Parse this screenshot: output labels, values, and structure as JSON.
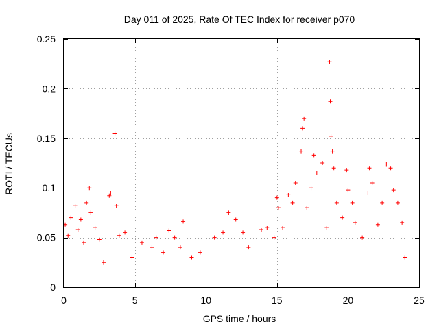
{
  "chart_data": {
    "type": "scatter",
    "title": "Day 011 of 2025, Rate Of TEC Index for receiver p070",
    "xlabel": "GPS time / hours",
    "ylabel": "ROTI / TECUs",
    "xlim": [
      0,
      25
    ],
    "ylim": [
      0,
      0.25
    ],
    "xticks": [
      "0",
      "5",
      "10",
      "15",
      "20",
      "25"
    ],
    "yticks": [
      "0",
      "0.05",
      "0.1",
      "0.15",
      "0.2",
      "0.25"
    ],
    "grid": true,
    "marker": "plus",
    "marker_color": "#ff0000",
    "series": [
      {
        "points": [
          [
            0.1,
            0.063
          ],
          [
            0.3,
            0.052
          ],
          [
            0.5,
            0.07
          ],
          [
            0.8,
            0.082
          ],
          [
            1.0,
            0.058
          ],
          [
            1.2,
            0.068
          ],
          [
            1.4,
            0.045
          ],
          [
            1.6,
            0.085
          ],
          [
            1.8,
            0.1
          ],
          [
            1.9,
            0.075
          ],
          [
            2.2,
            0.06
          ],
          [
            2.5,
            0.048
          ],
          [
            2.8,
            0.025
          ],
          [
            3.2,
            0.092
          ],
          [
            3.3,
            0.095
          ],
          [
            3.6,
            0.155
          ],
          [
            3.7,
            0.082
          ],
          [
            3.9,
            0.052
          ],
          [
            4.3,
            0.055
          ],
          [
            4.8,
            0.03
          ],
          [
            5.5,
            0.045
          ],
          [
            6.2,
            0.04
          ],
          [
            6.5,
            0.05
          ],
          [
            7.0,
            0.035
          ],
          [
            7.4,
            0.057
          ],
          [
            7.8,
            0.05
          ],
          [
            8.2,
            0.04
          ],
          [
            8.4,
            0.066
          ],
          [
            9.0,
            0.03
          ],
          [
            9.6,
            0.035
          ],
          [
            10.6,
            0.05
          ],
          [
            11.2,
            0.055
          ],
          [
            11.6,
            0.075
          ],
          [
            12.1,
            0.068
          ],
          [
            12.6,
            0.055
          ],
          [
            13.0,
            0.04
          ],
          [
            13.9,
            0.058
          ],
          [
            14.3,
            0.06
          ],
          [
            14.8,
            0.05
          ],
          [
            15.0,
            0.09
          ],
          [
            15.1,
            0.08
          ],
          [
            15.4,
            0.06
          ],
          [
            15.8,
            0.093
          ],
          [
            16.1,
            0.085
          ],
          [
            16.3,
            0.105
          ],
          [
            16.7,
            0.137
          ],
          [
            16.8,
            0.16
          ],
          [
            16.9,
            0.17
          ],
          [
            17.1,
            0.08
          ],
          [
            17.4,
            0.1
          ],
          [
            17.6,
            0.133
          ],
          [
            17.8,
            0.115
          ],
          [
            18.2,
            0.125
          ],
          [
            18.5,
            0.06
          ],
          [
            18.7,
            0.227
          ],
          [
            18.75,
            0.187
          ],
          [
            18.8,
            0.152
          ],
          [
            18.9,
            0.137
          ],
          [
            19.0,
            0.12
          ],
          [
            19.2,
            0.085
          ],
          [
            19.6,
            0.07
          ],
          [
            19.9,
            0.118
          ],
          [
            20.0,
            0.098
          ],
          [
            20.3,
            0.085
          ],
          [
            20.5,
            0.065
          ],
          [
            21.0,
            0.05
          ],
          [
            21.4,
            0.095
          ],
          [
            21.5,
            0.12
          ],
          [
            21.7,
            0.105
          ],
          [
            22.1,
            0.063
          ],
          [
            22.4,
            0.085
          ],
          [
            22.7,
            0.124
          ],
          [
            23.0,
            0.12
          ],
          [
            23.2,
            0.098
          ],
          [
            23.5,
            0.085
          ],
          [
            23.8,
            0.065
          ],
          [
            24.0,
            0.03
          ]
        ]
      }
    ]
  }
}
